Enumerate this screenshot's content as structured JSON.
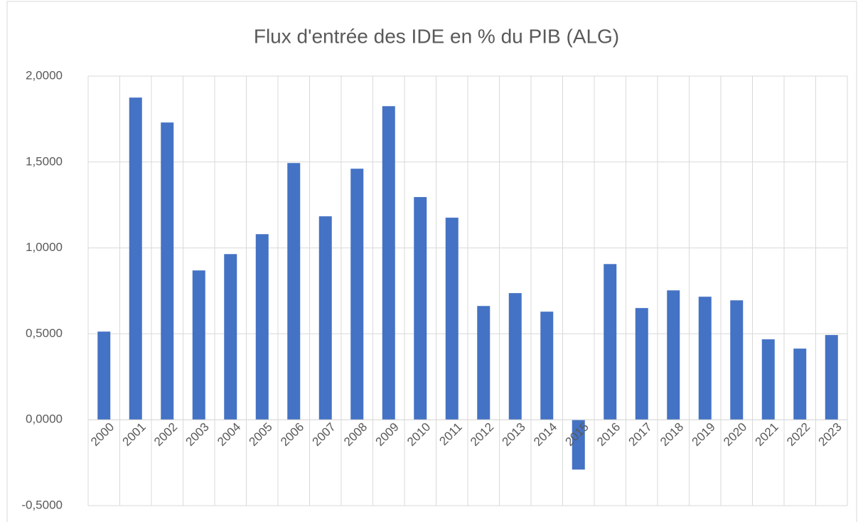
{
  "chart_data": {
    "type": "bar",
    "title": "Flux d'entrée des IDE en % du PIB (ALG)",
    "categories": [
      "2000",
      "2001",
      "2002",
      "2003",
      "2004",
      "2005",
      "2006",
      "2007",
      "2008",
      "2009",
      "2010",
      "2011",
      "2012",
      "2013",
      "2014",
      "2015",
      "2016",
      "2017",
      "2018",
      "2019",
      "2020",
      "2021",
      "2022",
      "2023"
    ],
    "values": [
      0.513,
      1.875,
      1.73,
      0.869,
      0.964,
      1.08,
      1.494,
      1.184,
      1.461,
      1.825,
      1.296,
      1.176,
      0.662,
      0.737,
      0.629,
      -0.29,
      0.906,
      0.65,
      0.753,
      0.716,
      0.695,
      0.468,
      0.414,
      0.493
    ],
    "color": "#4472c4",
    "ylim": [
      -0.5,
      2
    ],
    "yticks": [
      {
        "value": -0.5,
        "label": "-0,5000"
      },
      {
        "value": 0,
        "label": "0,0000"
      },
      {
        "value": 0.5,
        "label": "0,5000"
      },
      {
        "value": 1,
        "label": "1,0000"
      },
      {
        "value": 1.5,
        "label": "1,5000"
      },
      {
        "value": 2,
        "label": "2,0000"
      }
    ],
    "grid": true
  }
}
